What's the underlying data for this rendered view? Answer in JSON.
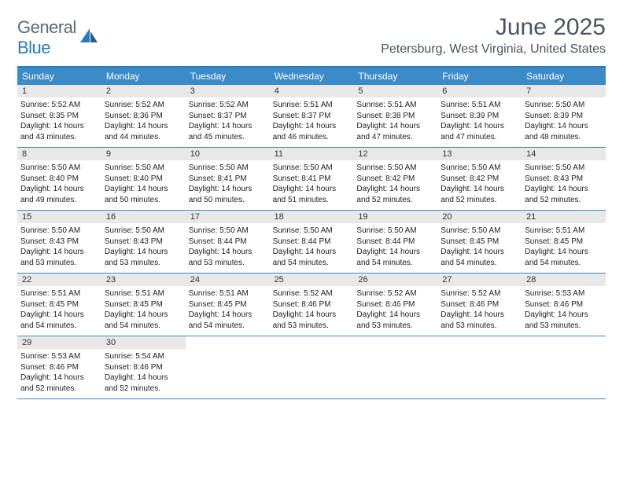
{
  "brand": {
    "part1": "General",
    "part2": "Blue"
  },
  "title": "June 2025",
  "location": "Petersburg, West Virginia, United States",
  "header_bg": "#3b8bc9",
  "border_color": "#3b8bc9",
  "daynum_bg": "#e8e8e8",
  "weekdays": [
    "Sunday",
    "Monday",
    "Tuesday",
    "Wednesday",
    "Thursday",
    "Friday",
    "Saturday"
  ],
  "weeks": [
    [
      {
        "n": "1",
        "sr": "Sunrise: 5:52 AM",
        "ss": "Sunset: 8:35 PM",
        "d1": "Daylight: 14 hours",
        "d2": "and 43 minutes."
      },
      {
        "n": "2",
        "sr": "Sunrise: 5:52 AM",
        "ss": "Sunset: 8:36 PM",
        "d1": "Daylight: 14 hours",
        "d2": "and 44 minutes."
      },
      {
        "n": "3",
        "sr": "Sunrise: 5:52 AM",
        "ss": "Sunset: 8:37 PM",
        "d1": "Daylight: 14 hours",
        "d2": "and 45 minutes."
      },
      {
        "n": "4",
        "sr": "Sunrise: 5:51 AM",
        "ss": "Sunset: 8:37 PM",
        "d1": "Daylight: 14 hours",
        "d2": "and 46 minutes."
      },
      {
        "n": "5",
        "sr": "Sunrise: 5:51 AM",
        "ss": "Sunset: 8:38 PM",
        "d1": "Daylight: 14 hours",
        "d2": "and 47 minutes."
      },
      {
        "n": "6",
        "sr": "Sunrise: 5:51 AM",
        "ss": "Sunset: 8:39 PM",
        "d1": "Daylight: 14 hours",
        "d2": "and 47 minutes."
      },
      {
        "n": "7",
        "sr": "Sunrise: 5:50 AM",
        "ss": "Sunset: 8:39 PM",
        "d1": "Daylight: 14 hours",
        "d2": "and 48 minutes."
      }
    ],
    [
      {
        "n": "8",
        "sr": "Sunrise: 5:50 AM",
        "ss": "Sunset: 8:40 PM",
        "d1": "Daylight: 14 hours",
        "d2": "and 49 minutes."
      },
      {
        "n": "9",
        "sr": "Sunrise: 5:50 AM",
        "ss": "Sunset: 8:40 PM",
        "d1": "Daylight: 14 hours",
        "d2": "and 50 minutes."
      },
      {
        "n": "10",
        "sr": "Sunrise: 5:50 AM",
        "ss": "Sunset: 8:41 PM",
        "d1": "Daylight: 14 hours",
        "d2": "and 50 minutes."
      },
      {
        "n": "11",
        "sr": "Sunrise: 5:50 AM",
        "ss": "Sunset: 8:41 PM",
        "d1": "Daylight: 14 hours",
        "d2": "and 51 minutes."
      },
      {
        "n": "12",
        "sr": "Sunrise: 5:50 AM",
        "ss": "Sunset: 8:42 PM",
        "d1": "Daylight: 14 hours",
        "d2": "and 52 minutes."
      },
      {
        "n": "13",
        "sr": "Sunrise: 5:50 AM",
        "ss": "Sunset: 8:42 PM",
        "d1": "Daylight: 14 hours",
        "d2": "and 52 minutes."
      },
      {
        "n": "14",
        "sr": "Sunrise: 5:50 AM",
        "ss": "Sunset: 8:43 PM",
        "d1": "Daylight: 14 hours",
        "d2": "and 52 minutes."
      }
    ],
    [
      {
        "n": "15",
        "sr": "Sunrise: 5:50 AM",
        "ss": "Sunset: 8:43 PM",
        "d1": "Daylight: 14 hours",
        "d2": "and 53 minutes."
      },
      {
        "n": "16",
        "sr": "Sunrise: 5:50 AM",
        "ss": "Sunset: 8:43 PM",
        "d1": "Daylight: 14 hours",
        "d2": "and 53 minutes."
      },
      {
        "n": "17",
        "sr": "Sunrise: 5:50 AM",
        "ss": "Sunset: 8:44 PM",
        "d1": "Daylight: 14 hours",
        "d2": "and 53 minutes."
      },
      {
        "n": "18",
        "sr": "Sunrise: 5:50 AM",
        "ss": "Sunset: 8:44 PM",
        "d1": "Daylight: 14 hours",
        "d2": "and 54 minutes."
      },
      {
        "n": "19",
        "sr": "Sunrise: 5:50 AM",
        "ss": "Sunset: 8:44 PM",
        "d1": "Daylight: 14 hours",
        "d2": "and 54 minutes."
      },
      {
        "n": "20",
        "sr": "Sunrise: 5:50 AM",
        "ss": "Sunset: 8:45 PM",
        "d1": "Daylight: 14 hours",
        "d2": "and 54 minutes."
      },
      {
        "n": "21",
        "sr": "Sunrise: 5:51 AM",
        "ss": "Sunset: 8:45 PM",
        "d1": "Daylight: 14 hours",
        "d2": "and 54 minutes."
      }
    ],
    [
      {
        "n": "22",
        "sr": "Sunrise: 5:51 AM",
        "ss": "Sunset: 8:45 PM",
        "d1": "Daylight: 14 hours",
        "d2": "and 54 minutes."
      },
      {
        "n": "23",
        "sr": "Sunrise: 5:51 AM",
        "ss": "Sunset: 8:45 PM",
        "d1": "Daylight: 14 hours",
        "d2": "and 54 minutes."
      },
      {
        "n": "24",
        "sr": "Sunrise: 5:51 AM",
        "ss": "Sunset: 8:45 PM",
        "d1": "Daylight: 14 hours",
        "d2": "and 54 minutes."
      },
      {
        "n": "25",
        "sr": "Sunrise: 5:52 AM",
        "ss": "Sunset: 8:46 PM",
        "d1": "Daylight: 14 hours",
        "d2": "and 53 minutes."
      },
      {
        "n": "26",
        "sr": "Sunrise: 5:52 AM",
        "ss": "Sunset: 8:46 PM",
        "d1": "Daylight: 14 hours",
        "d2": "and 53 minutes."
      },
      {
        "n": "27",
        "sr": "Sunrise: 5:52 AM",
        "ss": "Sunset: 8:46 PM",
        "d1": "Daylight: 14 hours",
        "d2": "and 53 minutes."
      },
      {
        "n": "28",
        "sr": "Sunrise: 5:53 AM",
        "ss": "Sunset: 8:46 PM",
        "d1": "Daylight: 14 hours",
        "d2": "and 53 minutes."
      }
    ],
    [
      {
        "n": "29",
        "sr": "Sunrise: 5:53 AM",
        "ss": "Sunset: 8:46 PM",
        "d1": "Daylight: 14 hours",
        "d2": "and 52 minutes."
      },
      {
        "n": "30",
        "sr": "Sunrise: 5:54 AM",
        "ss": "Sunset: 8:46 PM",
        "d1": "Daylight: 14 hours",
        "d2": "and 52 minutes."
      },
      null,
      null,
      null,
      null,
      null
    ]
  ]
}
